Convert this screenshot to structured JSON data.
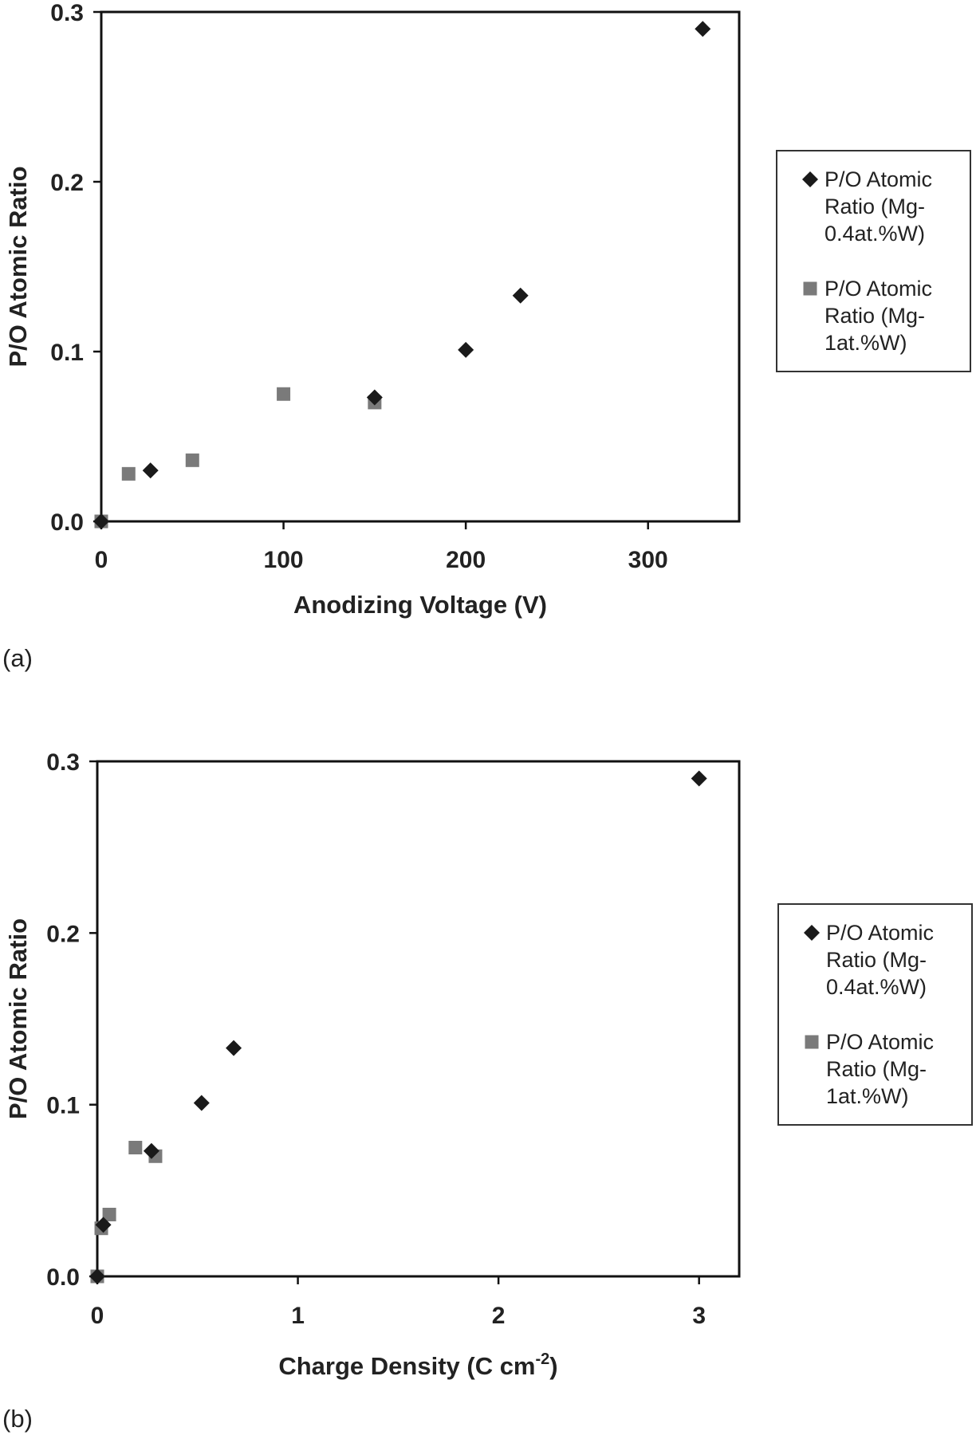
{
  "chart_data": [
    {
      "type": "scatter",
      "panel_label": "(a)",
      "xlabel": "Anodizing Voltage (V)",
      "ylabel": "P/O Atomic Ratio",
      "xlim": [
        0,
        350
      ],
      "ylim": [
        0,
        0.3
      ],
      "x_ticks": [
        "0",
        "100",
        "200",
        "300"
      ],
      "y_ticks": [
        "0.0",
        "0.1",
        "0.2",
        "0.3"
      ],
      "grid": false,
      "legend_position": "right",
      "series": [
        {
          "name": "P/O Atomic Ratio (Mg-0.4at.%W)",
          "legend_lines": [
            "P/O Atomic",
            "Ratio (Mg-",
            "0.4at.%W)"
          ],
          "marker": "diamond",
          "color": "#1a1a1a",
          "x": [
            0,
            27,
            150,
            200,
            230,
            330
          ],
          "y": [
            0.0,
            0.03,
            0.073,
            0.101,
            0.133,
            0.29
          ]
        },
        {
          "name": "P/O Atomic Ratio (Mg-1at.%W)",
          "legend_lines": [
            "P/O Atomic",
            "Ratio (Mg-",
            "1at.%W)"
          ],
          "marker": "square",
          "color": "#7a7a7a",
          "x": [
            0,
            15,
            50,
            100,
            150
          ],
          "y": [
            0.0,
            0.028,
            0.036,
            0.075,
            0.07
          ]
        }
      ]
    },
    {
      "type": "scatter",
      "panel_label": "(b)",
      "xlabel": "Charge Density (C cm",
      "xlabel_sup": "-2",
      "xlabel_tail": ")",
      "ylabel": "P/O Atomic Ratio",
      "xlim": [
        0,
        3.2
      ],
      "ylim": [
        0,
        0.3
      ],
      "x_ticks": [
        "0",
        "1",
        "2",
        "3"
      ],
      "y_ticks": [
        "0.0",
        "0.1",
        "0.2",
        "0.3"
      ],
      "grid": false,
      "legend_position": "right",
      "series": [
        {
          "name": "P/O Atomic Ratio (Mg-0.4at.%W)",
          "legend_lines": [
            "P/O Atomic",
            "Ratio (Mg-",
            "0.4at.%W)"
          ],
          "marker": "diamond",
          "color": "#1a1a1a",
          "x": [
            0,
            0.03,
            0.27,
            0.52,
            0.68,
            3.0
          ],
          "y": [
            0.0,
            0.03,
            0.073,
            0.101,
            0.133,
            0.29
          ]
        },
        {
          "name": "P/O Atomic Ratio (Mg-1at.%W)",
          "legend_lines": [
            "P/O Atomic",
            "Ratio (Mg-",
            "1at.%W)"
          ],
          "marker": "square",
          "color": "#7a7a7a",
          "x": [
            0,
            0.02,
            0.06,
            0.19,
            0.29
          ],
          "y": [
            0.0,
            0.028,
            0.036,
            0.075,
            0.07
          ]
        }
      ]
    }
  ]
}
